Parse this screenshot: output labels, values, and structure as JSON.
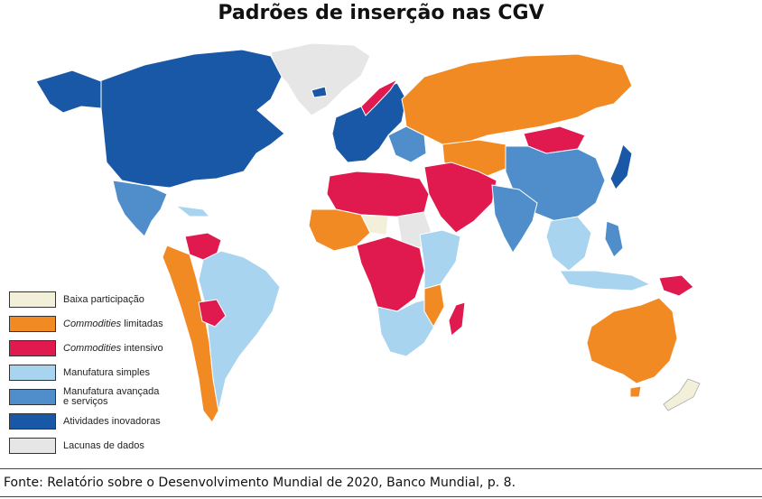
{
  "title": "Padrões de inserção nas CGV",
  "legend": [
    {
      "label_em": "",
      "label": "Baixa participação",
      "color": "#f2f0d9"
    },
    {
      "label_em": "Commodities",
      "label": " limitadas",
      "color": "#f28a24"
    },
    {
      "label_em": "Commodities",
      "label": " intensivo",
      "color": "#e0194e"
    },
    {
      "label_em": "",
      "label": "Manufatura simples",
      "color": "#a8d4ef"
    },
    {
      "label_em": "",
      "label": "Manufatura avançada\ne serviços",
      "color": "#4f8dcb"
    },
    {
      "label_em": "",
      "label": "Atividades inovadoras",
      "color": "#1858a6"
    },
    {
      "label_em": "",
      "label": "Lacunas de dados",
      "color": "#e6e6e6"
    }
  ],
  "source": "Fonte: Relatório sobre o Desenvolvimento Mundial de 2020, Banco Mundial, p. 8.",
  "regions": {
    "north_america": "Atividades inovadoras",
    "greenland": "Lacunas de dados",
    "mexico": "Manufatura avançada e serviços",
    "south_america": "Manufatura simples",
    "russia": "Commodities limitadas",
    "australia": "Commodities limitadas",
    "china": "Manufatura avançada e serviços",
    "india": "Manufatura avançada e serviços",
    "middle_east": "Commodities intensivo",
    "central_africa": "Commodities intensivo"
  }
}
